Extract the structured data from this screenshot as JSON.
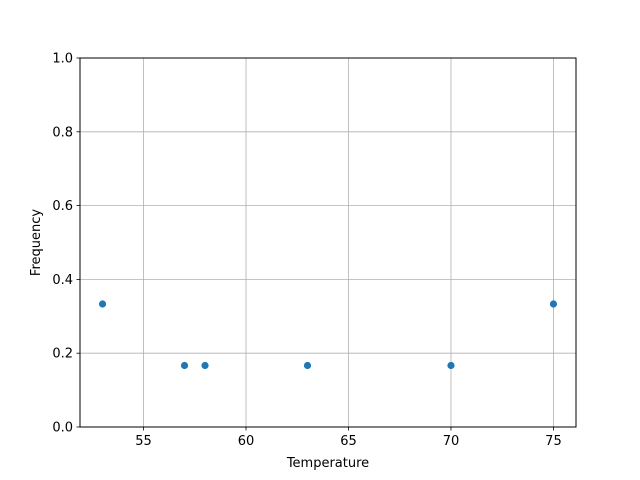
{
  "chart_data": {
    "type": "scatter",
    "title": "",
    "xlabel": "Temperature",
    "ylabel": "Frequency",
    "xlim": [
      51.9,
      76.1
    ],
    "ylim": [
      0.0,
      1.0
    ],
    "xticks": [
      55,
      60,
      65,
      70,
      75
    ],
    "yticks": [
      0.0,
      0.2,
      0.4,
      0.6,
      0.8,
      1.0
    ],
    "xtick_labels": [
      "55",
      "60",
      "65",
      "70",
      "75"
    ],
    "ytick_labels": [
      "0.0",
      "0.2",
      "0.4",
      "0.6",
      "0.8",
      "1.0"
    ],
    "grid": true,
    "color": "#1f77b4",
    "points": [
      {
        "x": 53,
        "y": 0.3333
      },
      {
        "x": 57,
        "y": 0.1667
      },
      {
        "x": 58,
        "y": 0.1667
      },
      {
        "x": 63,
        "y": 0.1667
      },
      {
        "x": 70,
        "y": 0.1667
      },
      {
        "x": 75,
        "y": 0.3333
      }
    ]
  }
}
